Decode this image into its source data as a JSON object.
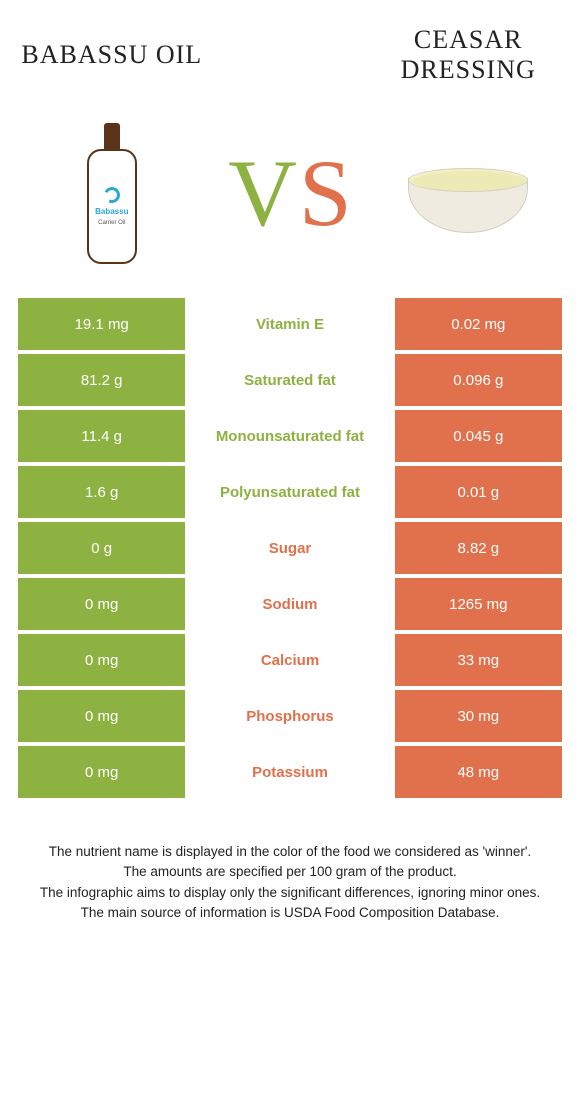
{
  "header": {
    "left_title": "Babassu oil",
    "right_title": "Ceasar\ndressing",
    "vs_letters": [
      "V",
      "S"
    ],
    "product_left_label_1": "Babassu",
    "product_left_label_2": "Carrier Oil"
  },
  "colors": {
    "left_bg": "#8db241",
    "right_bg": "#e1704c",
    "mid_bg": "#ffffff",
    "left_text": "#8db241",
    "right_text": "#e1704c",
    "vs_left": "#8db241",
    "vs_right": "#e1704c"
  },
  "table": {
    "rows": [
      {
        "left": "19.1 mg",
        "label": "Vitamin E",
        "right": "0.02 mg",
        "winner": "left"
      },
      {
        "left": "81.2 g",
        "label": "Saturated fat",
        "right": "0.096 g",
        "winner": "left"
      },
      {
        "left": "11.4 g",
        "label": "Monounsaturated fat",
        "right": "0.045 g",
        "winner": "left"
      },
      {
        "left": "1.6 g",
        "label": "Polyunsaturated fat",
        "right": "0.01 g",
        "winner": "left"
      },
      {
        "left": "0 g",
        "label": "Sugar",
        "right": "8.82 g",
        "winner": "right"
      },
      {
        "left": "0 mg",
        "label": "Sodium",
        "right": "1265 mg",
        "winner": "right"
      },
      {
        "left": "0 mg",
        "label": "Calcium",
        "right": "33 mg",
        "winner": "right"
      },
      {
        "left": "0 mg",
        "label": "Phosphorus",
        "right": "30 mg",
        "winner": "right"
      },
      {
        "left": "0 mg",
        "label": "Potassium",
        "right": "48 mg",
        "winner": "right"
      }
    ]
  },
  "notes": {
    "line1": "The nutrient name is displayed in the color of the food we considered as 'winner'.",
    "line2": "The amounts are specified per 100 gram of the product.",
    "line3": "The infographic aims to display only the significant differences, ignoring minor ones.",
    "line4": "The main source of information is USDA Food Composition Database."
  }
}
